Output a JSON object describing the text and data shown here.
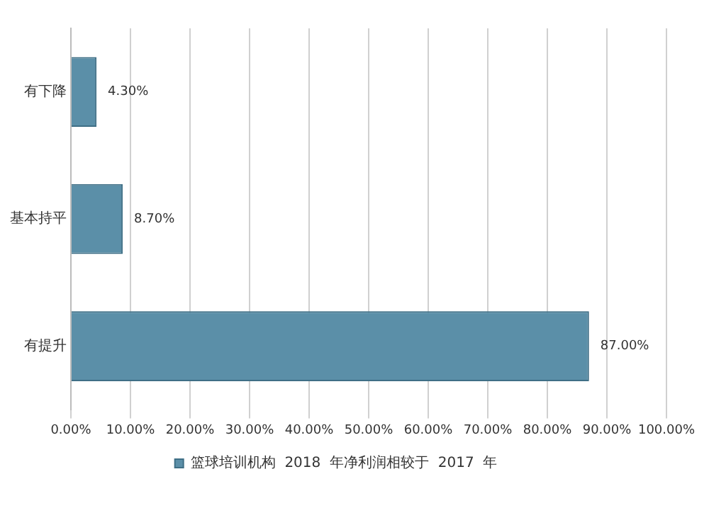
{
  "chart_data": {
    "type": "bar",
    "orientation": "horizontal",
    "categories": [
      "有下降",
      "基本持平",
      "有提升"
    ],
    "series": [
      {
        "name": "篮球培训机构  2018  年净利润相较于  2017  年",
        "color": "#5b8fa8",
        "values": [
          4.3,
          8.7,
          87.0
        ],
        "value_labels": [
          "4.30%",
          "8.70%",
          "87.00%"
        ]
      }
    ],
    "xlim": [
      0,
      100
    ],
    "xticks": [
      {
        "value": 0,
        "label": "0.00%"
      },
      {
        "value": 10,
        "label": "10.00%"
      },
      {
        "value": 20,
        "label": "20.00%"
      },
      {
        "value": 30,
        "label": "30.00%"
      },
      {
        "value": 40,
        "label": "40.00%"
      },
      {
        "value": 50,
        "label": "50.00%"
      },
      {
        "value": 60,
        "label": "60.00%"
      },
      {
        "value": 70,
        "label": "70.00%"
      },
      {
        "value": 80,
        "label": "80.00%"
      },
      {
        "value": 90,
        "label": "90.00%"
      },
      {
        "value": 100,
        "label": "100.00%"
      }
    ],
    "grid": "x",
    "legend": "bottom"
  }
}
